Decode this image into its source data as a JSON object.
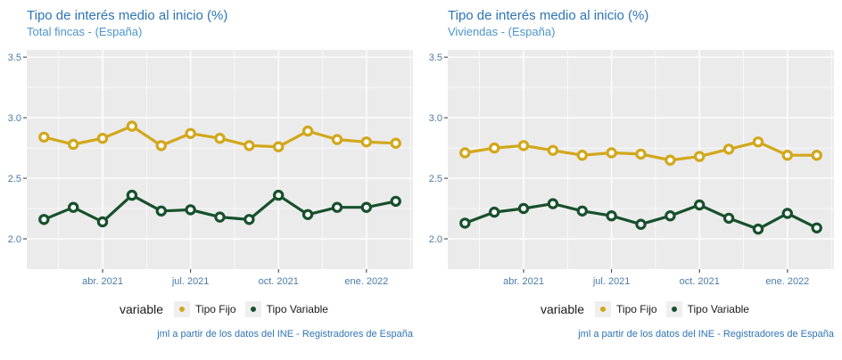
{
  "colors": {
    "title": "#2E74B5",
    "subtitle": "#4D94CB",
    "axis_text": "#4C7BA8",
    "caption": "#2E74B5",
    "plot_background": "#EBEBEB",
    "grid_major": "#FFFFFF",
    "grid_minor": "#FFFFFF",
    "tick_mark": "#333333",
    "tipo_fijo": "#D2A71A",
    "tipo_variable": "#17502C"
  },
  "chart_data": [
    {
      "type": "line",
      "title": "Tipo de interés medio al inicio (%)",
      "subtitle": "Total fincas - (España)",
      "caption": "jml a partir de los datos del INE - Registradores de España",
      "legend_title": "variable",
      "legend_position": "bottom",
      "grid": true,
      "x": [
        "feb. 2021",
        "mar. 2021",
        "abr. 2021",
        "may. 2021",
        "jun. 2021",
        "jul. 2021",
        "ago. 2021",
        "sep. 2021",
        "oct. 2021",
        "nov. 2021",
        "dic. 2021",
        "ene. 2022",
        "feb. 2022"
      ],
      "x_tick_labels": [
        "abr. 2021",
        "jul. 2021",
        "oct. 2021",
        "ene. 2022"
      ],
      "x_tick_indices": [
        2,
        5,
        8,
        11
      ],
      "y_ticks": [
        2.0,
        2.5,
        3.0,
        3.5
      ],
      "y_minor_ticks": [
        2.25,
        2.75,
        3.25
      ],
      "ylim": [
        1.75,
        3.56
      ],
      "series": [
        {
          "name": "Tipo Fijo",
          "color": "#D2A71A",
          "values": [
            2.84,
            2.78,
            2.83,
            2.93,
            2.77,
            2.87,
            2.83,
            2.77,
            2.76,
            2.89,
            2.82,
            2.8,
            2.79
          ]
        },
        {
          "name": "Tipo Variable",
          "color": "#17502C",
          "values": [
            2.16,
            2.26,
            2.14,
            2.36,
            2.23,
            2.24,
            2.18,
            2.16,
            2.36,
            2.2,
            2.26,
            2.26,
            2.31
          ]
        }
      ]
    },
    {
      "type": "line",
      "title": "Tipo de interés medio al inicio (%)",
      "subtitle": "Viviendas - (España)",
      "caption": "jml a partir de los datos del INE - Registradores de España",
      "legend_title": "variable",
      "legend_position": "bottom",
      "grid": true,
      "x": [
        "feb. 2021",
        "mar. 2021",
        "abr. 2021",
        "may. 2021",
        "jun. 2021",
        "jul. 2021",
        "ago. 2021",
        "sep. 2021",
        "oct. 2021",
        "nov. 2021",
        "dic. 2021",
        "ene. 2022",
        "feb. 2022"
      ],
      "x_tick_labels": [
        "abr. 2021",
        "jul. 2021",
        "oct. 2021",
        "ene. 2022"
      ],
      "x_tick_indices": [
        2,
        5,
        8,
        11
      ],
      "y_ticks": [
        2.0,
        2.5,
        3.0,
        3.5
      ],
      "y_minor_ticks": [
        2.25,
        2.75,
        3.25
      ],
      "ylim": [
        1.75,
        3.56
      ],
      "series": [
        {
          "name": "Tipo Fijo",
          "color": "#D2A71A",
          "values": [
            2.71,
            2.75,
            2.77,
            2.73,
            2.69,
            2.71,
            2.7,
            2.65,
            2.68,
            2.74,
            2.8,
            2.69,
            2.69
          ]
        },
        {
          "name": "Tipo Variable",
          "color": "#17502C",
          "values": [
            2.13,
            2.22,
            2.25,
            2.29,
            2.23,
            2.19,
            2.12,
            2.19,
            2.28,
            2.17,
            2.08,
            2.21,
            2.09
          ]
        }
      ]
    }
  ]
}
